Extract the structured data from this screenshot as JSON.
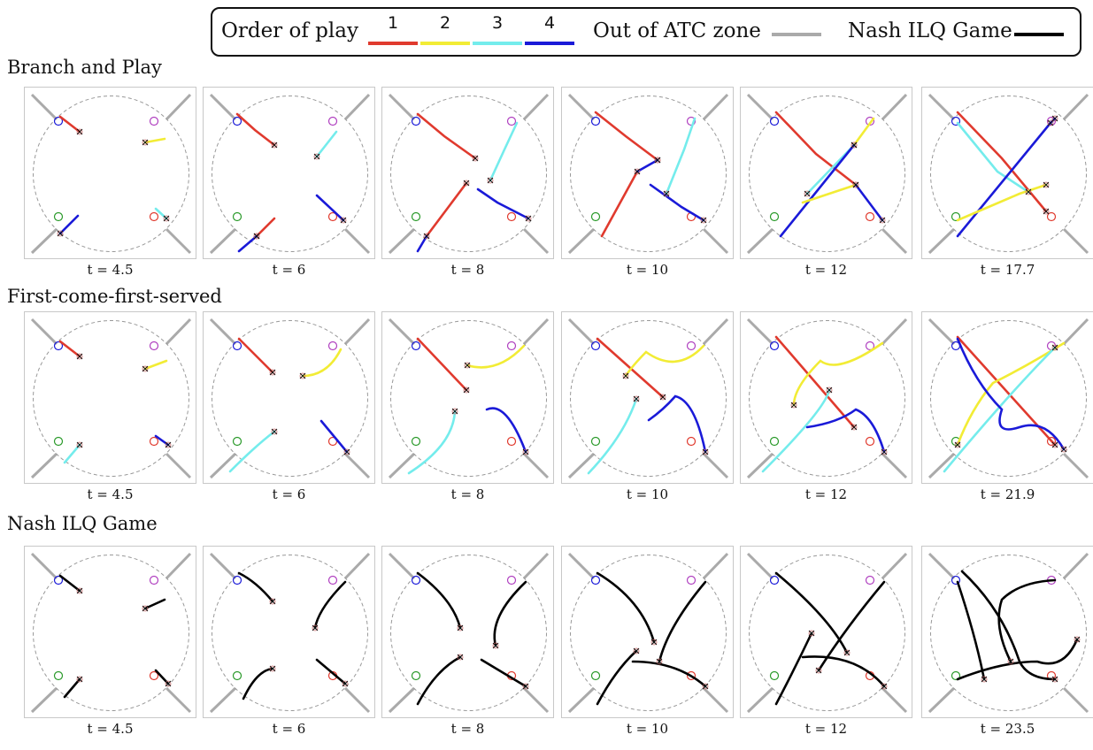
{
  "legend": {
    "order_label": "Order of play",
    "steps": [
      {
        "num": "1",
        "color": "#e03a2e"
      },
      {
        "num": "2",
        "color": "#f2ec35"
      },
      {
        "num": "3",
        "color": "#74ecec"
      },
      {
        "num": "4",
        "color": "#1a1ad8"
      }
    ],
    "out_zone_label": "Out of ATC zone",
    "out_zone_color": "#aaaaaa",
    "nash_label": "Nash ILQ Game",
    "nash_color": "#000000"
  },
  "rows": [
    {
      "title": "Branch and Play",
      "panels": [
        {
          "t_label": "t = 4.5"
        },
        {
          "t_label": "t = 6"
        },
        {
          "t_label": "t = 8"
        },
        {
          "t_label": "t = 10"
        },
        {
          "t_label": "t = 12"
        },
        {
          "t_label": "t = 17.7"
        }
      ]
    },
    {
      "title": "First-come-first-served",
      "panels": [
        {
          "t_label": "t = 4.5"
        },
        {
          "t_label": "t = 6"
        },
        {
          "t_label": "t = 8"
        },
        {
          "t_label": "t = 10"
        },
        {
          "t_label": "t = 12"
        },
        {
          "t_label": "t = 21.9"
        }
      ]
    },
    {
      "title": "Nash ILQ Game",
      "panels": [
        {
          "t_label": "t = 4.5"
        },
        {
          "t_label": "t = 6"
        },
        {
          "t_label": "t = 8"
        },
        {
          "t_label": "t = 10"
        },
        {
          "t_label": "t = 12"
        },
        {
          "t_label": "t = 23.5"
        }
      ]
    }
  ],
  "goal_colors": {
    "nw": "#1a1ad8",
    "ne": "#b040c0",
    "sw": "#2a9a2a",
    "se": "#e03a2e"
  }
}
